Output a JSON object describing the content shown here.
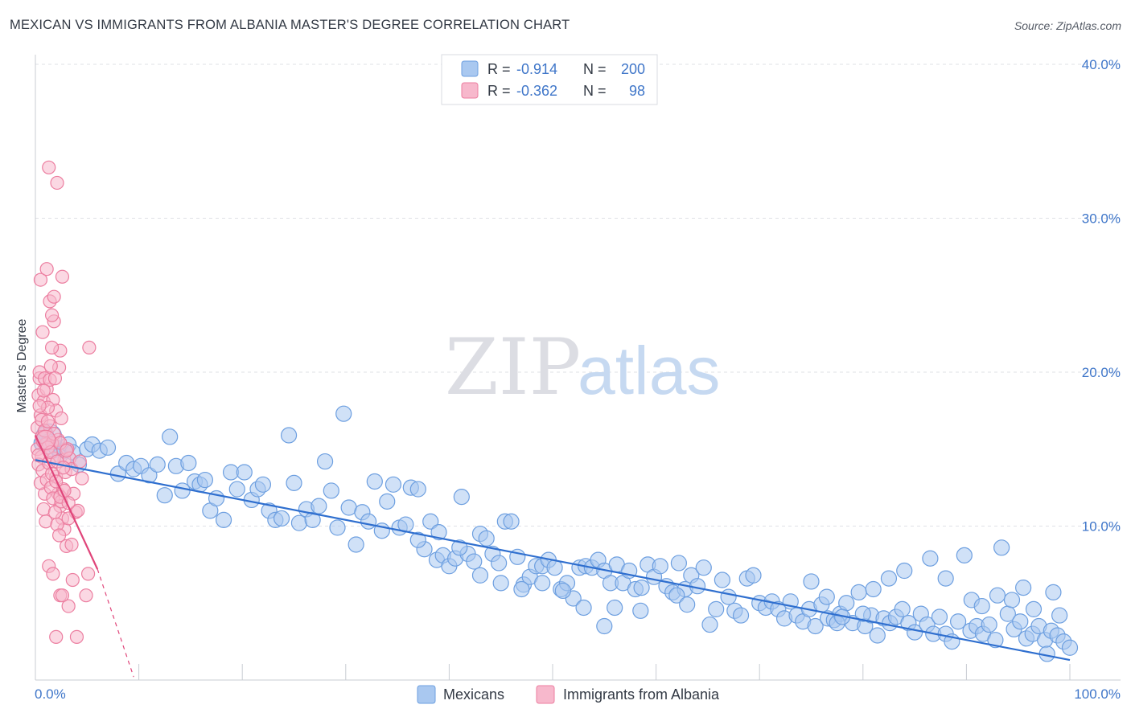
{
  "header": {
    "title": "MEXICAN VS IMMIGRANTS FROM ALBANIA MASTER'S DEGREE CORRELATION CHART",
    "source": "Source: ZipAtlas.com"
  },
  "watermark": {
    "part1": "ZIP",
    "part2": "atlas"
  },
  "colors": {
    "blue_fill": "#a9c8f0",
    "blue_stroke": "#6d9fe0",
    "blue_line": "#2f6fcf",
    "pink_fill": "#f7b8cc",
    "pink_stroke": "#ec7ea0",
    "pink_line": "#e0457a",
    "axis_text": "#3f76c9",
    "grid": "#dfe1e6"
  },
  "legend": {
    "rows": [
      {
        "r_label": "R =",
        "r_value": "-0.914",
        "n_label": "N =",
        "n_value": "200"
      },
      {
        "r_label": "R =",
        "r_value": "-0.362",
        "n_label": "N =",
        "n_value": "98"
      }
    ]
  },
  "bottom_legend": {
    "series1": "Mexicans",
    "series2": "Immigrants from Albania"
  },
  "chart_data": {
    "type": "scatter",
    "title": "MEXICAN VS IMMIGRANTS FROM ALBANIA MASTER'S DEGREE CORRELATION CHART",
    "xlabel": "",
    "ylabel": "Master's Degree",
    "xlim": [
      0,
      100
    ],
    "ylim": [
      0,
      42
    ],
    "x_tick_labels": [
      "0.0%",
      "100.0%"
    ],
    "y_ticks": [
      10,
      20,
      30,
      40
    ],
    "y_tick_labels": [
      "10.0%",
      "20.0%",
      "30.0%",
      "40.0%"
    ],
    "grid": true,
    "series": [
      {
        "name": "Mexicans",
        "R": -0.914,
        "N": 200,
        "trend": {
          "x": [
            0,
            100
          ],
          "y": [
            14.3,
            1.3
          ]
        },
        "points": [
          [
            0.6,
            15.4
          ],
          [
            1.0,
            16.0
          ],
          [
            1.3,
            15.5
          ],
          [
            1.7,
            14.9
          ],
          [
            2.0,
            15.1
          ],
          [
            2.4,
            14.6
          ],
          [
            2.8,
            14.9
          ],
          [
            3.2,
            15.3
          ],
          [
            3.6,
            14.8
          ],
          [
            4.2,
            14.0
          ],
          [
            5.0,
            15.0
          ],
          [
            5.5,
            15.3
          ],
          [
            6.2,
            14.9
          ],
          [
            7.0,
            15.1
          ],
          [
            8.0,
            13.4
          ],
          [
            8.8,
            14.1
          ],
          [
            9.5,
            13.7
          ],
          [
            10.2,
            13.9
          ],
          [
            11.0,
            13.3
          ],
          [
            11.8,
            14.0
          ],
          [
            12.5,
            12.0
          ],
          [
            13.0,
            15.8
          ],
          [
            13.6,
            13.9
          ],
          [
            14.2,
            12.3
          ],
          [
            14.8,
            14.1
          ],
          [
            15.4,
            12.9
          ],
          [
            15.9,
            12.7
          ],
          [
            16.4,
            13.0
          ],
          [
            16.9,
            11.0
          ],
          [
            17.5,
            11.8
          ],
          [
            18.2,
            10.4
          ],
          [
            18.9,
            13.5
          ],
          [
            19.5,
            12.4
          ],
          [
            20.2,
            13.5
          ],
          [
            20.9,
            11.7
          ],
          [
            21.5,
            12.4
          ],
          [
            22.0,
            12.7
          ],
          [
            22.6,
            11.0
          ],
          [
            23.2,
            10.4
          ],
          [
            23.8,
            10.5
          ],
          [
            24.5,
            15.9
          ],
          [
            25.0,
            12.8
          ],
          [
            25.5,
            10.2
          ],
          [
            26.2,
            11.1
          ],
          [
            26.8,
            10.4
          ],
          [
            27.4,
            11.3
          ],
          [
            28.0,
            14.2
          ],
          [
            28.6,
            12.3
          ],
          [
            29.2,
            9.9
          ],
          [
            29.8,
            17.3
          ],
          [
            30.3,
            11.2
          ],
          [
            31.0,
            8.8
          ],
          [
            31.6,
            10.9
          ],
          [
            32.2,
            10.3
          ],
          [
            32.8,
            12.9
          ],
          [
            33.5,
            9.7
          ],
          [
            34.0,
            11.6
          ],
          [
            34.6,
            12.7
          ],
          [
            35.2,
            9.9
          ],
          [
            35.8,
            10.1
          ],
          [
            36.3,
            12.5
          ],
          [
            37.0,
            12.4
          ],
          [
            37.6,
            8.5
          ],
          [
            38.2,
            10.3
          ],
          [
            38.8,
            7.8
          ],
          [
            39.4,
            8.1
          ],
          [
            40.0,
            7.4
          ],
          [
            40.6,
            7.9
          ],
          [
            41.2,
            11.9
          ],
          [
            41.8,
            8.2
          ],
          [
            42.4,
            7.7
          ],
          [
            43.0,
            9.5
          ],
          [
            43.6,
            9.2
          ],
          [
            44.2,
            8.2
          ],
          [
            44.8,
            7.6
          ],
          [
            45.4,
            10.3
          ],
          [
            46.0,
            10.3
          ],
          [
            46.6,
            8.0
          ],
          [
            47.2,
            6.2
          ],
          [
            47.8,
            6.7
          ],
          [
            48.4,
            7.4
          ],
          [
            49.0,
            7.4
          ],
          [
            49.6,
            7.8
          ],
          [
            50.2,
            7.3
          ],
          [
            50.8,
            5.9
          ],
          [
            51.4,
            6.3
          ],
          [
            52.0,
            5.3
          ],
          [
            52.6,
            7.3
          ],
          [
            53.2,
            7.4
          ],
          [
            53.8,
            7.3
          ],
          [
            54.4,
            7.8
          ],
          [
            55.0,
            7.1
          ],
          [
            55.6,
            6.3
          ],
          [
            56.2,
            7.5
          ],
          [
            56.8,
            6.3
          ],
          [
            57.4,
            7.1
          ],
          [
            58.0,
            5.9
          ],
          [
            58.6,
            6.0
          ],
          [
            59.2,
            7.5
          ],
          [
            59.8,
            6.7
          ],
          [
            60.4,
            7.4
          ],
          [
            61.0,
            6.1
          ],
          [
            61.6,
            5.7
          ],
          [
            62.2,
            7.6
          ],
          [
            62.8,
            5.9
          ],
          [
            63.4,
            6.8
          ],
          [
            64.0,
            6.1
          ],
          [
            64.6,
            7.3
          ],
          [
            65.2,
            3.6
          ],
          [
            65.8,
            4.6
          ],
          [
            66.4,
            6.5
          ],
          [
            67.0,
            5.4
          ],
          [
            67.6,
            4.5
          ],
          [
            68.2,
            4.2
          ],
          [
            68.8,
            6.6
          ],
          [
            69.4,
            6.8
          ],
          [
            70.0,
            5.0
          ],
          [
            70.6,
            4.7
          ],
          [
            71.2,
            5.1
          ],
          [
            71.8,
            4.6
          ],
          [
            72.4,
            4.0
          ],
          [
            73.0,
            5.1
          ],
          [
            73.6,
            4.2
          ],
          [
            74.2,
            3.8
          ],
          [
            74.8,
            4.6
          ],
          [
            75.4,
            3.5
          ],
          [
            76.0,
            4.9
          ],
          [
            76.6,
            4.0
          ],
          [
            77.2,
            3.9
          ],
          [
            77.8,
            4.3
          ],
          [
            78.4,
            5.0
          ],
          [
            79.0,
            3.7
          ],
          [
            79.6,
            5.7
          ],
          [
            80.2,
            3.5
          ],
          [
            80.8,
            4.2
          ],
          [
            81.4,
            2.9
          ],
          [
            82.0,
            4.0
          ],
          [
            82.6,
            3.7
          ],
          [
            83.2,
            4.1
          ],
          [
            83.8,
            4.6
          ],
          [
            84.4,
            3.7
          ],
          [
            85.0,
            3.1
          ],
          [
            85.6,
            4.3
          ],
          [
            86.2,
            3.6
          ],
          [
            86.8,
            3.0
          ],
          [
            87.4,
            4.1
          ],
          [
            88.0,
            3.0
          ],
          [
            88.6,
            2.5
          ],
          [
            89.2,
            3.8
          ],
          [
            89.8,
            8.1
          ],
          [
            90.4,
            3.2
          ],
          [
            91.0,
            3.5
          ],
          [
            91.6,
            3.0
          ],
          [
            92.2,
            3.6
          ],
          [
            92.8,
            2.6
          ],
          [
            93.4,
            8.6
          ],
          [
            94.0,
            4.3
          ],
          [
            94.6,
            3.3
          ],
          [
            95.2,
            3.8
          ],
          [
            95.8,
            2.7
          ],
          [
            96.4,
            3.0
          ],
          [
            97.0,
            3.5
          ],
          [
            97.6,
            2.6
          ],
          [
            98.2,
            3.2
          ],
          [
            98.8,
            2.9
          ],
          [
            99.4,
            2.5
          ],
          [
            100.0,
            2.1
          ],
          [
            99.0,
            4.2
          ],
          [
            98.4,
            5.7
          ],
          [
            97.8,
            1.7
          ],
          [
            82.5,
            6.6
          ],
          [
            84.0,
            7.1
          ],
          [
            86.5,
            7.9
          ],
          [
            88.0,
            6.6
          ],
          [
            90.5,
            5.2
          ],
          [
            91.5,
            4.8
          ],
          [
            93.0,
            5.5
          ],
          [
            94.4,
            5.2
          ],
          [
            95.5,
            6.0
          ],
          [
            96.5,
            4.6
          ],
          [
            75.0,
            6.4
          ],
          [
            76.5,
            5.4
          ],
          [
            77.5,
            3.7
          ],
          [
            78.0,
            4.1
          ],
          [
            80.0,
            4.3
          ],
          [
            81.0,
            5.9
          ],
          [
            62.0,
            5.5
          ],
          [
            63.0,
            4.9
          ],
          [
            58.5,
            4.5
          ],
          [
            56.0,
            4.7
          ],
          [
            55.0,
            3.5
          ],
          [
            53.0,
            4.7
          ],
          [
            51.0,
            5.8
          ],
          [
            49.0,
            6.3
          ],
          [
            47.0,
            5.9
          ],
          [
            45.0,
            6.3
          ],
          [
            43.0,
            6.8
          ],
          [
            41.0,
            8.6
          ],
          [
            39.0,
            9.6
          ],
          [
            37.0,
            9.1
          ]
        ]
      },
      {
        "name": "Immigrants from Albania",
        "R": -0.362,
        "N": 98,
        "trend": {
          "x": [
            0,
            6.0
          ],
          "y": [
            15.9,
            7.2
          ]
        },
        "trend_extension": {
          "x": [
            6.0,
            9.5
          ],
          "y": [
            7.2,
            0.2
          ]
        },
        "points": [
          [
            0.2,
            15.0
          ],
          [
            0.3,
            18.5
          ],
          [
            0.4,
            19.6
          ],
          [
            0.5,
            17.2
          ],
          [
            0.6,
            14.5
          ],
          [
            0.7,
            22.6
          ],
          [
            0.8,
            18.1
          ],
          [
            0.9,
            12.1
          ],
          [
            1.0,
            15.3
          ],
          [
            1.1,
            18.9
          ],
          [
            0.2,
            16.4
          ],
          [
            0.3,
            14.0
          ],
          [
            0.4,
            20.0
          ],
          [
            0.5,
            12.8
          ],
          [
            0.6,
            16.9
          ],
          [
            0.7,
            13.6
          ],
          [
            0.8,
            11.1
          ],
          [
            0.9,
            19.6
          ],
          [
            1.0,
            10.3
          ],
          [
            1.1,
            13.0
          ],
          [
            0.5,
            26.0
          ],
          [
            1.1,
            26.7
          ],
          [
            1.4,
            24.6
          ],
          [
            1.8,
            24.9
          ],
          [
            1.8,
            23.3
          ],
          [
            1.6,
            23.7
          ],
          [
            2.4,
            21.4
          ],
          [
            2.3,
            20.3
          ],
          [
            2.6,
            26.2
          ],
          [
            1.5,
            20.4
          ],
          [
            1.3,
            33.3
          ],
          [
            2.1,
            32.3
          ],
          [
            1.4,
            19.5
          ],
          [
            1.6,
            21.6
          ],
          [
            1.7,
            18.2
          ],
          [
            1.9,
            19.6
          ],
          [
            2.0,
            17.5
          ],
          [
            2.2,
            15.6
          ],
          [
            2.5,
            17.0
          ],
          [
            2.8,
            14.3
          ],
          [
            1.2,
            17.7
          ],
          [
            1.4,
            16.5
          ],
          [
            1.6,
            15.4
          ],
          [
            1.8,
            14.4
          ],
          [
            2.0,
            13.2
          ],
          [
            2.2,
            12.1
          ],
          [
            2.4,
            11.3
          ],
          [
            2.6,
            10.5
          ],
          [
            2.8,
            9.8
          ],
          [
            3.0,
            8.7
          ],
          [
            1.3,
            14.1
          ],
          [
            1.5,
            12.5
          ],
          [
            1.7,
            11.8
          ],
          [
            1.9,
            10.9
          ],
          [
            2.1,
            10.1
          ],
          [
            2.3,
            9.4
          ],
          [
            2.5,
            11.6
          ],
          [
            2.7,
            12.4
          ],
          [
            2.9,
            13.5
          ],
          [
            3.1,
            15.0
          ],
          [
            3.3,
            14.4
          ],
          [
            3.5,
            13.7
          ],
          [
            3.7,
            12.1
          ],
          [
            3.9,
            10.9
          ],
          [
            4.1,
            11.0
          ],
          [
            4.3,
            14.2
          ],
          [
            4.5,
            13.1
          ],
          [
            3.2,
            10.5
          ],
          [
            3.6,
            6.5
          ],
          [
            3.2,
            4.8
          ],
          [
            2.4,
            5.5
          ],
          [
            2.6,
            5.5
          ],
          [
            5.1,
            6.9
          ],
          [
            5.2,
            21.6
          ],
          [
            1.3,
            7.4
          ],
          [
            1.7,
            6.9
          ],
          [
            2.0,
            2.8
          ],
          [
            4.0,
            2.8
          ],
          [
            4.9,
            5.5
          ],
          [
            3.5,
            8.8
          ],
          [
            0.3,
            14.6
          ],
          [
            0.6,
            15.8
          ],
          [
            0.9,
            16.2
          ],
          [
            1.2,
            15.1
          ],
          [
            1.5,
            14.8
          ],
          [
            1.8,
            16.0
          ],
          [
            2.1,
            14.2
          ],
          [
            2.4,
            15.4
          ],
          [
            2.7,
            13.8
          ],
          [
            3.0,
            14.9
          ],
          [
            0.4,
            17.8
          ],
          [
            0.8,
            18.8
          ],
          [
            1.2,
            16.8
          ],
          [
            1.6,
            13.4
          ],
          [
            2.0,
            12.9
          ],
          [
            2.4,
            11.9
          ],
          [
            2.8,
            12.3
          ],
          [
            3.2,
            11.5
          ]
        ]
      }
    ]
  }
}
